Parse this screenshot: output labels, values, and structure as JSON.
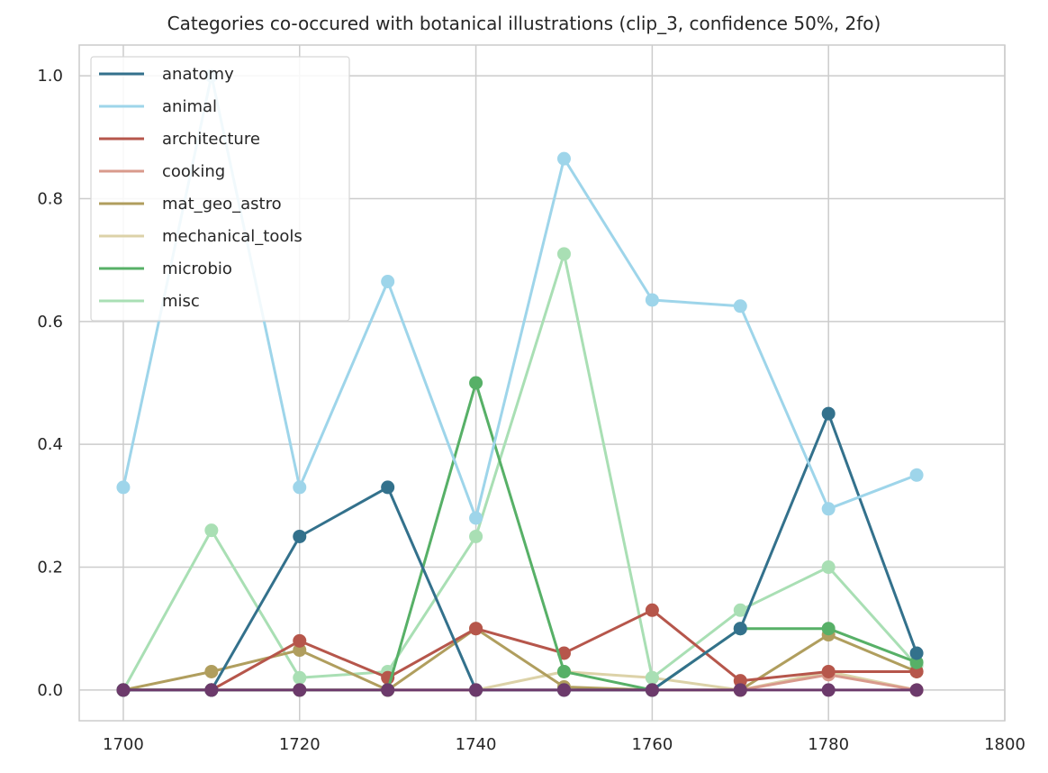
{
  "chart_data": {
    "type": "line",
    "title": "Categories co-occured with botanical illustrations (clip_3, confidence 50%, 2fo)",
    "xlabel": "",
    "ylabel": "",
    "xlim": [
      1695,
      1800
    ],
    "ylim": [
      -0.05,
      1.05
    ],
    "x_ticks": [
      1700,
      1720,
      1740,
      1760,
      1780,
      1800
    ],
    "y_ticks": [
      0.0,
      0.2,
      0.4,
      0.6,
      0.8,
      1.0
    ],
    "x_tick_labels": [
      "1700",
      "1720",
      "1740",
      "1760",
      "1780",
      "1800"
    ],
    "y_tick_labels": [
      "0.0",
      "0.2",
      "0.4",
      "0.6",
      "0.8",
      "1.0"
    ],
    "grid": true,
    "legend_position": "top-left",
    "x": [
      1700,
      1710,
      1720,
      1730,
      1740,
      1750,
      1760,
      1770,
      1780,
      1790
    ],
    "series": [
      {
        "name": "mechanical_tools",
        "color": "#dcd2a8",
        "values": [
          0,
          0,
          0,
          0,
          0,
          0.03,
          0.02,
          0,
          0.03,
          0
        ]
      },
      {
        "name": "cooking",
        "color": "#d99a8c",
        "values": [
          0,
          0,
          0,
          0,
          0,
          0,
          0,
          0,
          0.025,
          0
        ]
      },
      {
        "name": "misc",
        "color": "#a9dfb4",
        "values": [
          0,
          0.26,
          0.02,
          0.03,
          0.25,
          0.71,
          0.02,
          0.13,
          0.2,
          0.04
        ]
      },
      {
        "name": "mat_geo_astro",
        "color": "#b09e5e",
        "values": [
          0,
          0.03,
          0.065,
          0,
          0.1,
          0.005,
          0,
          0,
          0.09,
          0.03
        ]
      },
      {
        "name": "architecture",
        "color": "#b6564b",
        "values": [
          0,
          0,
          0.08,
          0.02,
          0.1,
          0.06,
          0.13,
          0.015,
          0.03,
          0.03
        ]
      },
      {
        "name": "microbio",
        "color": "#57b067",
        "values": [
          0,
          0,
          0,
          0,
          0.5,
          0.03,
          0,
          0.1,
          0.1,
          0.045
        ]
      },
      {
        "name": "anatomy",
        "color": "#33718c",
        "values": [
          0,
          0,
          0.25,
          0.33,
          0,
          0,
          0,
          0.1,
          0.45,
          0.06
        ]
      },
      {
        "name": "animal",
        "color": "#9ed5ea",
        "values": [
          0.33,
          1.0,
          0.33,
          0.665,
          0.28,
          0.865,
          0.635,
          0.625,
          0.295,
          0.35
        ]
      },
      {
        "name": "",
        "color": "#6c3a6b",
        "values": [
          0,
          0,
          0,
          0,
          0,
          0,
          0,
          0,
          0,
          0
        ]
      }
    ],
    "legend": [
      {
        "name": "anatomy",
        "color": "#33718c"
      },
      {
        "name": "animal",
        "color": "#9ed5ea"
      },
      {
        "name": "architecture",
        "color": "#b6564b"
      },
      {
        "name": "cooking",
        "color": "#d99a8c"
      },
      {
        "name": "mat_geo_astro",
        "color": "#b09e5e"
      },
      {
        "name": "mechanical_tools",
        "color": "#dcd2a8"
      },
      {
        "name": "microbio",
        "color": "#57b067"
      },
      {
        "name": "misc",
        "color": "#a9dfb4"
      }
    ]
  }
}
